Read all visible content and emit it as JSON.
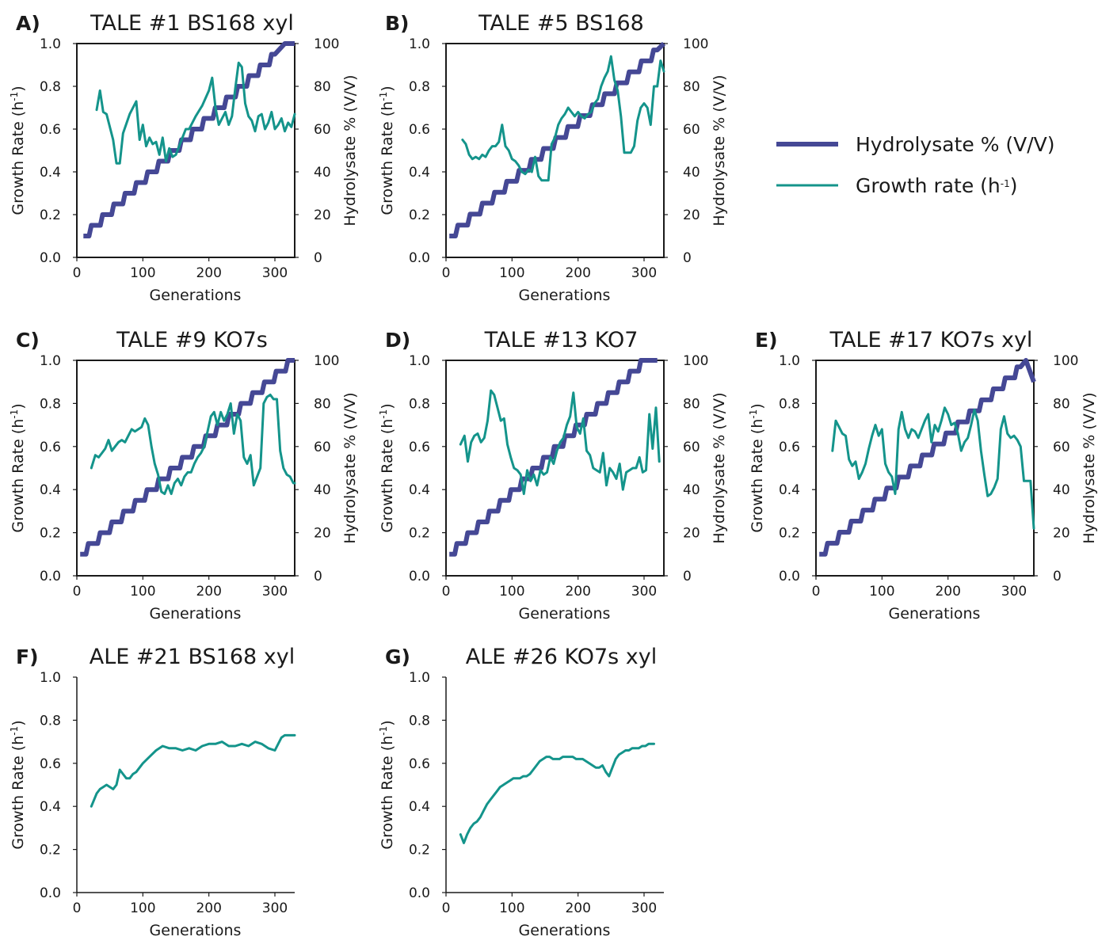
{
  "colors": {
    "hydrolysate": "#454895",
    "growth": "#14948b",
    "axis": "#1a1a1a"
  },
  "legend": {
    "items": [
      {
        "label": "Hydrolysate % (V/V)",
        "series": "hydrolysate"
      },
      {
        "label": "Growth rate (h",
        "sup": "-1",
        "suffix": ")",
        "series": "growth"
      }
    ]
  },
  "chart_data": [
    {
      "panel": "A)",
      "type": "line",
      "title": "TALE #1 BS168 xyl",
      "xlabel": "Generations",
      "ylabel": "Growth Rate (h",
      "ylabel_sup": "-1",
      "ylabel_suffix": ")",
      "y2label": "Hydrolysate % (V/V)",
      "xlim": [
        0,
        330
      ],
      "xticks": [
        "0",
        "100",
        "200",
        "300"
      ],
      "ylim": [
        0,
        1
      ],
      "yticks": [
        "0.0",
        "0.2",
        "0.4",
        "0.6",
        "0.8",
        "1.0"
      ],
      "y2lim": [
        0,
        100
      ],
      "y2ticks": [
        "0",
        "20",
        "40",
        "60",
        "80",
        "100"
      ],
      "growth": {
        "x": [
          30,
          35,
          40,
          45,
          55,
          60,
          65,
          70,
          80,
          90,
          95,
          100,
          105,
          110,
          115,
          120,
          125,
          130,
          135,
          140,
          145,
          150,
          155,
          160,
          165,
          170,
          180,
          190,
          200,
          205,
          210,
          215,
          220,
          225,
          230,
          235,
          240,
          245,
          250,
          255,
          260,
          265,
          270,
          275,
          280,
          285,
          290,
          295,
          300,
          305,
          310,
          315,
          320,
          325,
          330
        ],
        "y": [
          0.69,
          0.78,
          0.68,
          0.67,
          0.55,
          0.44,
          0.44,
          0.58,
          0.67,
          0.73,
          0.55,
          0.62,
          0.52,
          0.56,
          0.53,
          0.54,
          0.48,
          0.56,
          0.45,
          0.51,
          0.47,
          0.48,
          0.52,
          0.56,
          0.6,
          0.6,
          0.66,
          0.71,
          0.78,
          0.84,
          0.7,
          0.62,
          0.65,
          0.68,
          0.62,
          0.66,
          0.79,
          0.91,
          0.89,
          0.72,
          0.66,
          0.64,
          0.59,
          0.66,
          0.67,
          0.6,
          0.63,
          0.68,
          0.6,
          0.62,
          0.65,
          0.59,
          0.63,
          0.61,
          0.67
        ]
      },
      "hydrolysate": {
        "x": [
          10,
          300,
          315,
          330
        ],
        "y": [
          10,
          95,
          100,
          100
        ],
        "step": 5
      }
    },
    {
      "panel": "B)",
      "type": "line",
      "title": "TALE #5 BS168",
      "xlabel": "Generations",
      "ylabel": "Growth Rate (h",
      "ylabel_sup": "-1",
      "ylabel_suffix": ")",
      "y2label": "Hydrolysate % (V/V)",
      "xlim": [
        0,
        330
      ],
      "xticks": [
        "0",
        "100",
        "200",
        "300"
      ],
      "ylim": [
        0,
        1
      ],
      "yticks": [
        "0.0",
        "0.2",
        "0.4",
        "0.6",
        "0.8",
        "1.0"
      ],
      "y2lim": [
        0,
        100
      ],
      "y2ticks": [
        "0",
        "20",
        "40",
        "60",
        "80",
        "100"
      ],
      "growth": {
        "x": [
          25,
          30,
          35,
          40,
          45,
          50,
          55,
          60,
          65,
          70,
          75,
          80,
          85,
          90,
          95,
          100,
          105,
          110,
          115,
          120,
          125,
          130,
          135,
          140,
          145,
          150,
          155,
          160,
          165,
          170,
          175,
          180,
          185,
          190,
          195,
          200,
          205,
          210,
          215,
          220,
          225,
          230,
          235,
          240,
          245,
          250,
          255,
          260,
          265,
          270,
          275,
          280,
          285,
          290,
          295,
          300,
          305,
          310,
          315,
          320,
          325,
          330
        ],
        "y": [
          0.55,
          0.53,
          0.48,
          0.46,
          0.47,
          0.46,
          0.48,
          0.47,
          0.5,
          0.52,
          0.52,
          0.54,
          0.62,
          0.52,
          0.5,
          0.46,
          0.45,
          0.43,
          0.4,
          0.39,
          0.41,
          0.4,
          0.47,
          0.38,
          0.36,
          0.36,
          0.36,
          0.53,
          0.56,
          0.62,
          0.65,
          0.67,
          0.7,
          0.68,
          0.66,
          0.68,
          0.66,
          0.65,
          0.67,
          0.68,
          0.72,
          0.74,
          0.8,
          0.84,
          0.87,
          0.94,
          0.83,
          0.78,
          0.66,
          0.49,
          0.49,
          0.49,
          0.52,
          0.64,
          0.7,
          0.72,
          0.7,
          0.62,
          0.8,
          0.8,
          0.92,
          0.87
        ]
      },
      "hydrolysate": {
        "x": [
          5,
          320,
          330
        ],
        "y": [
          10,
          97,
          100
        ],
        "step": 5
      }
    },
    {
      "panel": "C)",
      "type": "line",
      "title": "TALE #9 KO7s",
      "xlabel": "Generations",
      "ylabel": "Growth Rate (h",
      "ylabel_sup": "-1",
      "ylabel_suffix": ")",
      "y2label": "Hydrolysate % (V/V)",
      "xlim": [
        0,
        330
      ],
      "xticks": [
        "0",
        "100",
        "200",
        "300"
      ],
      "ylim": [
        0,
        1
      ],
      "yticks": [
        "0.0",
        "0.2",
        "0.4",
        "0.6",
        "0.8",
        "1.0"
      ],
      "y2lim": [
        0,
        100
      ],
      "y2ticks": [
        "0",
        "20",
        "40",
        "60",
        "80",
        "100"
      ],
      "growth": {
        "x": [
          22,
          28,
          33,
          38,
          43,
          48,
          53,
          58,
          63,
          68,
          73,
          78,
          83,
          88,
          93,
          98,
          103,
          108,
          113,
          118,
          123,
          128,
          133,
          138,
          143,
          148,
          153,
          158,
          163,
          168,
          173,
          178,
          183,
          188,
          193,
          198,
          203,
          208,
          213,
          218,
          223,
          228,
          233,
          238,
          243,
          248,
          253,
          258,
          263,
          268,
          273,
          278,
          283,
          288,
          293,
          298,
          303,
          308,
          313,
          318,
          323,
          328,
          330
        ],
        "y": [
          0.5,
          0.56,
          0.55,
          0.57,
          0.59,
          0.63,
          0.58,
          0.6,
          0.62,
          0.63,
          0.62,
          0.65,
          0.68,
          0.67,
          0.68,
          0.69,
          0.73,
          0.7,
          0.6,
          0.52,
          0.47,
          0.39,
          0.38,
          0.42,
          0.38,
          0.43,
          0.45,
          0.42,
          0.46,
          0.48,
          0.48,
          0.52,
          0.55,
          0.57,
          0.6,
          0.67,
          0.74,
          0.76,
          0.7,
          0.76,
          0.72,
          0.75,
          0.8,
          0.66,
          0.75,
          0.72,
          0.55,
          0.52,
          0.56,
          0.42,
          0.46,
          0.5,
          0.8,
          0.83,
          0.84,
          0.82,
          0.82,
          0.58,
          0.5,
          0.47,
          0.46,
          0.43,
          0.43
        ]
      },
      "hydrolysate": {
        "x": [
          5,
          325,
          330
        ],
        "y": [
          10,
          100,
          100
        ],
        "step": 5
      }
    },
    {
      "panel": "D)",
      "type": "line",
      "title": "TALE #13 KO7",
      "xlabel": "Generations",
      "ylabel": "Growth Rate (h",
      "ylabel_sup": "-1",
      "ylabel_suffix": ")",
      "y2label": "Hydrolysate % (V/V)",
      "xlim": [
        0,
        330
      ],
      "xticks": [
        "0",
        "100",
        "200",
        "300"
      ],
      "ylim": [
        0,
        1
      ],
      "yticks": [
        "0.0",
        "0.2",
        "0.4",
        "0.6",
        "0.8",
        "1.0"
      ],
      "y2lim": [
        0,
        100
      ],
      "y2ticks": [
        "0",
        "20",
        "40",
        "60",
        "80",
        "100"
      ],
      "growth": {
        "x": [
          22,
          28,
          33,
          38,
          43,
          48,
          53,
          58,
          63,
          68,
          73,
          78,
          83,
          88,
          93,
          98,
          103,
          108,
          113,
          118,
          123,
          128,
          133,
          138,
          143,
          148,
          153,
          158,
          163,
          168,
          173,
          178,
          183,
          188,
          193,
          198,
          203,
          208,
          213,
          218,
          223,
          228,
          233,
          238,
          243,
          248,
          253,
          258,
          263,
          268,
          273,
          278,
          283,
          288,
          293,
          298,
          303,
          308,
          313,
          318,
          323
        ],
        "y": [
          0.61,
          0.65,
          0.53,
          0.62,
          0.65,
          0.66,
          0.62,
          0.64,
          0.72,
          0.86,
          0.84,
          0.78,
          0.72,
          0.73,
          0.61,
          0.55,
          0.5,
          0.49,
          0.47,
          0.38,
          0.49,
          0.44,
          0.47,
          0.42,
          0.49,
          0.47,
          0.48,
          0.55,
          0.52,
          0.58,
          0.62,
          0.64,
          0.7,
          0.74,
          0.85,
          0.69,
          0.66,
          0.73,
          0.58,
          0.56,
          0.5,
          0.49,
          0.48,
          0.57,
          0.42,
          0.5,
          0.48,
          0.45,
          0.52,
          0.4,
          0.48,
          0.49,
          0.5,
          0.5,
          0.55,
          0.48,
          0.49,
          0.75,
          0.59,
          0.78,
          0.53
        ]
      },
      "hydrolysate": {
        "x": [
          5,
          300,
          320
        ],
        "y": [
          10,
          100,
          100
        ],
        "step": 5
      }
    },
    {
      "panel": "E)",
      "type": "line",
      "title": "TALE #17 KO7s xyl",
      "xlabel": "Generations",
      "ylabel": "Growth Rate (h",
      "ylabel_sup": "-1",
      "ylabel_suffix": ")",
      "y2label": "Hydrolysate % (V/V)",
      "xlim": [
        0,
        330
      ],
      "xticks": [
        "0",
        "100",
        "200",
        "300"
      ],
      "ylim": [
        0,
        1
      ],
      "yticks": [
        "0.0",
        "0.2",
        "0.4",
        "0.6",
        "0.8",
        "1.0"
      ],
      "y2lim": [
        0,
        100
      ],
      "y2ticks": [
        "0",
        "20",
        "40",
        "60",
        "80",
        "100"
      ],
      "growth": {
        "x": [
          25,
          30,
          35,
          40,
          45,
          50,
          55,
          60,
          65,
          70,
          75,
          80,
          85,
          90,
          95,
          100,
          105,
          110,
          115,
          120,
          125,
          130,
          135,
          140,
          145,
          150,
          155,
          160,
          165,
          170,
          175,
          180,
          185,
          190,
          195,
          200,
          205,
          210,
          215,
          220,
          225,
          230,
          235,
          240,
          245,
          250,
          255,
          260,
          265,
          270,
          275,
          280,
          285,
          290,
          295,
          300,
          305,
          310,
          315,
          320,
          325,
          330
        ],
        "y": [
          0.58,
          0.72,
          0.69,
          0.66,
          0.65,
          0.54,
          0.51,
          0.53,
          0.45,
          0.48,
          0.52,
          0.59,
          0.65,
          0.7,
          0.65,
          0.68,
          0.52,
          0.48,
          0.46,
          0.38,
          0.68,
          0.76,
          0.68,
          0.64,
          0.68,
          0.67,
          0.64,
          0.68,
          0.72,
          0.75,
          0.62,
          0.7,
          0.67,
          0.72,
          0.78,
          0.75,
          0.7,
          0.71,
          0.66,
          0.58,
          0.62,
          0.64,
          0.7,
          0.77,
          0.72,
          0.58,
          0.47,
          0.37,
          0.38,
          0.41,
          0.45,
          0.68,
          0.74,
          0.66,
          0.64,
          0.65,
          0.63,
          0.6,
          0.44,
          0.44,
          0.44,
          0.22
        ]
      },
      "hydrolysate": {
        "x": [
          5,
          310,
          318,
          330
        ],
        "y": [
          10,
          97,
          100,
          90
        ],
        "step": 5
      }
    },
    {
      "panel": "F)",
      "type": "line",
      "title": "ALE #21 BS168 xyl",
      "xlabel": "Generations",
      "ylabel": "Growth Rate (h",
      "ylabel_sup": "-1",
      "ylabel_suffix": ")",
      "xlim": [
        0,
        330
      ],
      "xticks": [
        "0",
        "100",
        "200",
        "300"
      ],
      "ylim": [
        0,
        1
      ],
      "yticks": [
        "0.0",
        "0.2",
        "0.4",
        "0.6",
        "0.8",
        "1.0"
      ],
      "growth": {
        "x": [
          22,
          30,
          35,
          40,
          45,
          50,
          55,
          60,
          65,
          70,
          75,
          80,
          85,
          90,
          95,
          100,
          110,
          120,
          130,
          140,
          150,
          160,
          170,
          180,
          190,
          200,
          210,
          220,
          230,
          240,
          250,
          260,
          270,
          280,
          290,
          300,
          310,
          315,
          320,
          325,
          330
        ],
        "y": [
          0.4,
          0.46,
          0.48,
          0.49,
          0.5,
          0.49,
          0.48,
          0.5,
          0.57,
          0.55,
          0.53,
          0.53,
          0.55,
          0.56,
          0.58,
          0.6,
          0.63,
          0.66,
          0.68,
          0.67,
          0.67,
          0.66,
          0.67,
          0.66,
          0.68,
          0.69,
          0.69,
          0.7,
          0.68,
          0.68,
          0.69,
          0.68,
          0.7,
          0.69,
          0.67,
          0.66,
          0.72,
          0.73,
          0.73,
          0.73,
          0.73
        ]
      }
    },
    {
      "panel": "G)",
      "type": "line",
      "title": "ALE #26 KO7s xyl",
      "xlabel": "Generations",
      "ylabel": "Growth Rate (h",
      "ylabel_sup": "-1",
      "ylabel_suffix": ")",
      "xlim": [
        0,
        330
      ],
      "xticks": [
        "0",
        "100",
        "200",
        "300"
      ],
      "ylim": [
        0,
        1
      ],
      "yticks": [
        "0.0",
        "0.2",
        "0.4",
        "0.6",
        "0.8",
        "1.0"
      ],
      "growth": {
        "x": [
          22,
          27,
          32,
          37,
          42,
          47,
          52,
          57,
          62,
          67,
          72,
          77,
          82,
          87,
          92,
          97,
          102,
          107,
          112,
          117,
          122,
          127,
          132,
          137,
          142,
          147,
          152,
          157,
          162,
          167,
          172,
          177,
          182,
          187,
          192,
          197,
          202,
          207,
          212,
          217,
          222,
          227,
          232,
          237,
          242,
          247,
          252,
          257,
          262,
          267,
          272,
          277,
          282,
          287,
          292,
          297,
          302,
          307,
          312,
          315
        ],
        "y": [
          0.27,
          0.23,
          0.27,
          0.3,
          0.32,
          0.33,
          0.35,
          0.38,
          0.41,
          0.43,
          0.45,
          0.47,
          0.49,
          0.5,
          0.51,
          0.52,
          0.53,
          0.53,
          0.53,
          0.54,
          0.54,
          0.55,
          0.57,
          0.59,
          0.61,
          0.62,
          0.63,
          0.63,
          0.62,
          0.62,
          0.62,
          0.63,
          0.63,
          0.63,
          0.63,
          0.62,
          0.62,
          0.62,
          0.61,
          0.6,
          0.59,
          0.58,
          0.58,
          0.59,
          0.56,
          0.54,
          0.58,
          0.62,
          0.64,
          0.65,
          0.66,
          0.66,
          0.67,
          0.67,
          0.67,
          0.68,
          0.68,
          0.69,
          0.69,
          0.69
        ]
      }
    }
  ]
}
